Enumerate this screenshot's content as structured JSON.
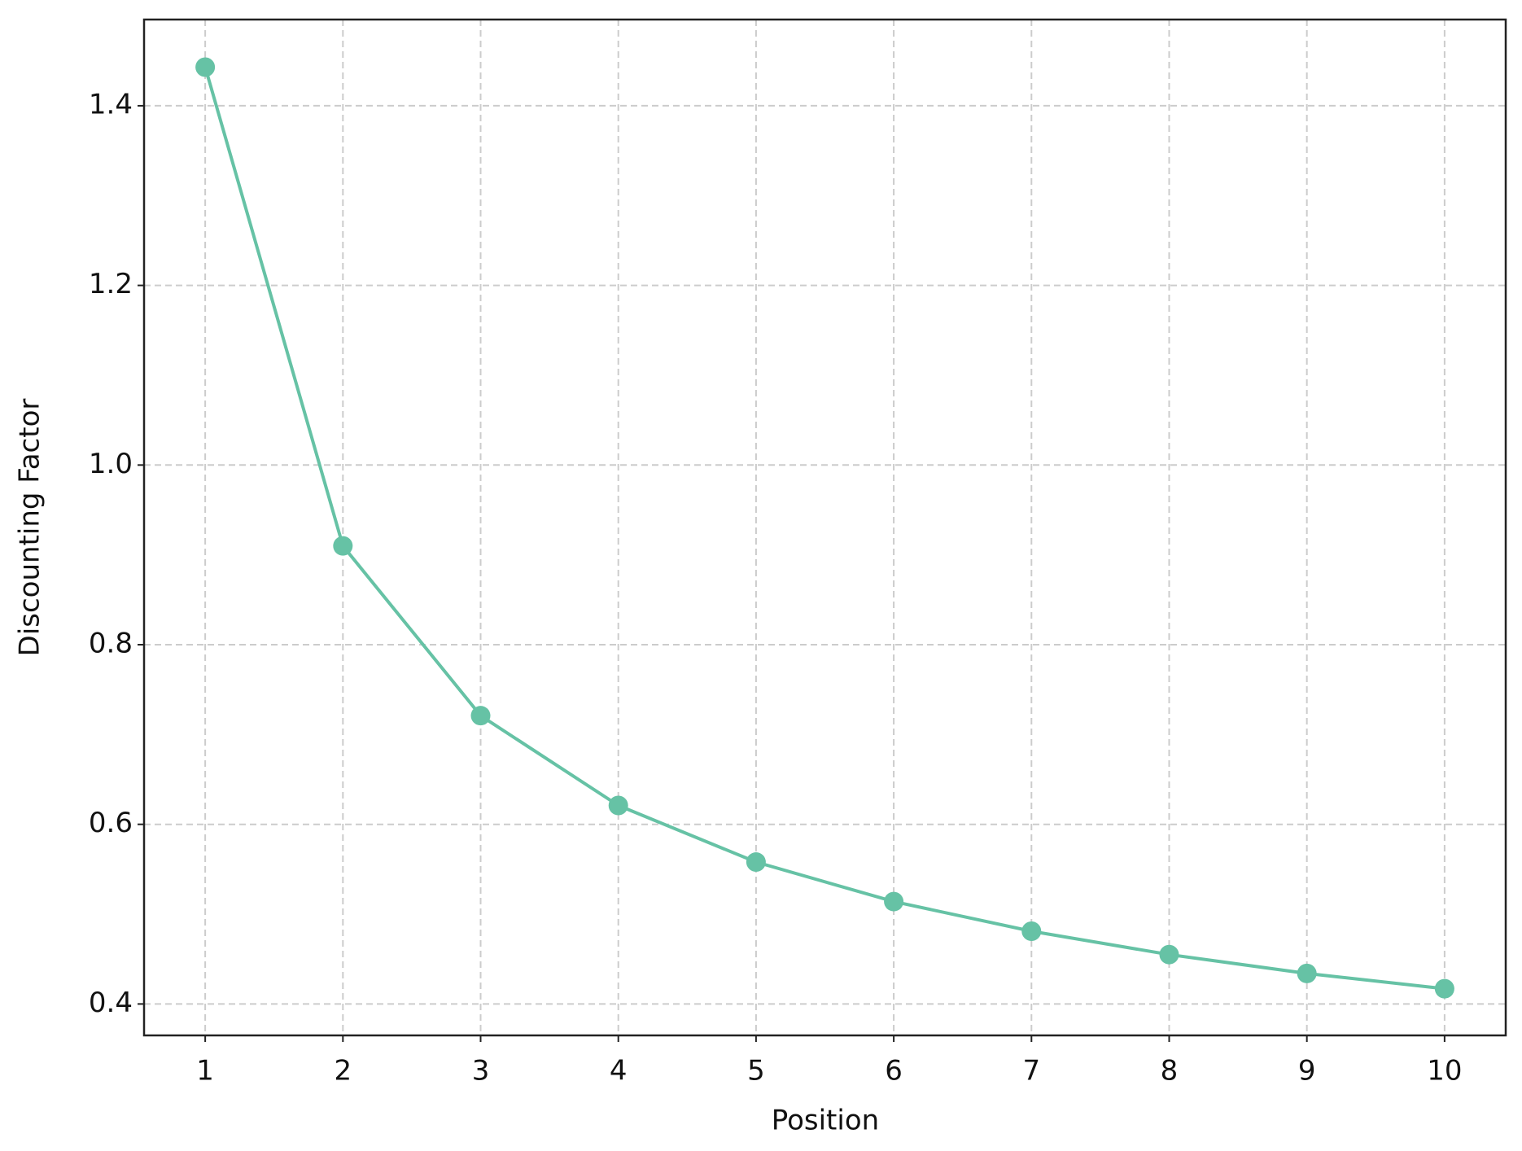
{
  "chart_data": {
    "type": "line",
    "x_label": "Position",
    "y_label": "Discounting Factor",
    "x": [
      1,
      2,
      3,
      4,
      5,
      6,
      7,
      8,
      9,
      10
    ],
    "series": [
      {
        "color": "#66c2a5",
        "values": [
          1.443,
          0.91,
          0.721,
          0.621,
          0.558,
          0.514,
          0.481,
          0.455,
          0.434,
          0.417
        ]
      }
    ],
    "xlim": [
      0.556,
      10.444
    ],
    "ylim": [
      0.365,
      1.496
    ],
    "xticks": [
      1,
      2,
      3,
      4,
      5,
      6,
      7,
      8,
      9,
      10
    ],
    "yticks": [
      {
        "value": 0.4,
        "label": "0.4"
      },
      {
        "value": 0.6,
        "label": "0.6"
      },
      {
        "value": 0.8,
        "label": "0.8"
      },
      {
        "value": 1.0,
        "label": "1.0"
      },
      {
        "value": 1.2,
        "label": "1.2"
      },
      {
        "value": 1.4,
        "label": "1.4"
      }
    ],
    "grid": true,
    "markers": true
  }
}
